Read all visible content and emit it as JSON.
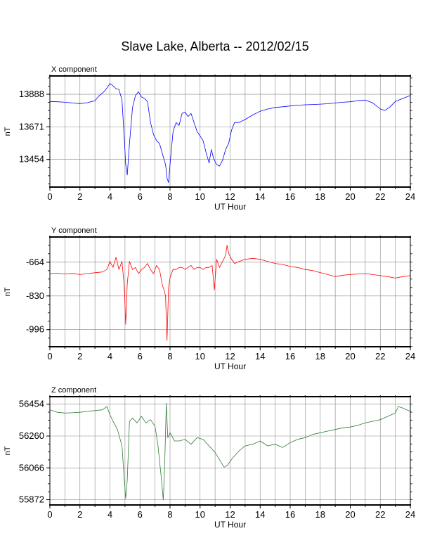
{
  "title": "Slave Lake, Alberta -- 2012/02/15",
  "chart_data": [
    {
      "type": "line",
      "panel_title": "X component",
      "xlabel": "UT Hour",
      "ylabel": "nT",
      "xlim": [
        0,
        24
      ],
      "ylim": [
        13270,
        14010
      ],
      "x_ticks": [
        0,
        2,
        4,
        6,
        8,
        10,
        12,
        14,
        16,
        18,
        20,
        22,
        24
      ],
      "y_ticks": [
        13454,
        13671,
        13888
      ],
      "grid": true,
      "series": [
        {
          "color": "#0000ff",
          "x": [
            0,
            0.5,
            1,
            1.5,
            2,
            2.5,
            3,
            3.3,
            3.6,
            3.8,
            4,
            4.2,
            4.4,
            4.6,
            4.8,
            4.95,
            5.05,
            5.15,
            5.3,
            5.5,
            5.7,
            5.9,
            6.1,
            6.3,
            6.5,
            6.7,
            6.9,
            7.1,
            7.3,
            7.5,
            7.7,
            7.8,
            7.9,
            8.0,
            8.2,
            8.4,
            8.6,
            8.8,
            9.0,
            9.2,
            9.4,
            9.6,
            9.8,
            10.0,
            10.2,
            10.4,
            10.6,
            10.75,
            10.9,
            11.1,
            11.3,
            11.5,
            11.7,
            11.9,
            12.1,
            12.3,
            12.6,
            13.0,
            13.5,
            14.0,
            14.5,
            15.0,
            15.5,
            16.0,
            16.5,
            17.0,
            17.5,
            18.0,
            18.5,
            19.0,
            19.5,
            20.0,
            20.5,
            21.0,
            21.5,
            22.0,
            22.3,
            22.6,
            23.0,
            23.5,
            24.0
          ],
          "values": [
            13840,
            13838,
            13835,
            13830,
            13826,
            13832,
            13845,
            13880,
            13905,
            13930,
            13960,
            13945,
            13925,
            13920,
            13850,
            13600,
            13420,
            13350,
            13560,
            13800,
            13880,
            13905,
            13870,
            13860,
            13840,
            13700,
            13620,
            13580,
            13560,
            13490,
            13420,
            13330,
            13300,
            13420,
            13640,
            13700,
            13680,
            13760,
            13770,
            13740,
            13760,
            13700,
            13640,
            13610,
            13580,
            13500,
            13430,
            13520,
            13460,
            13420,
            13410,
            13450,
            13520,
            13560,
            13650,
            13700,
            13700,
            13720,
            13750,
            13775,
            13790,
            13800,
            13805,
            13810,
            13815,
            13818,
            13820,
            13822,
            13825,
            13830,
            13835,
            13838,
            13845,
            13850,
            13830,
            13790,
            13780,
            13800,
            13840,
            13860,
            13880
          ]
        }
      ]
    },
    {
      "type": "line",
      "panel_title": "Y component",
      "xlabel": "UT Hour",
      "ylabel": "nT",
      "xlim": [
        0,
        24
      ],
      "ylim": [
        -1080,
        -540
      ],
      "x_ticks": [
        0,
        2,
        4,
        6,
        8,
        10,
        12,
        14,
        16,
        18,
        20,
        22,
        24
      ],
      "y_ticks": [
        -664,
        -830,
        -996
      ],
      "grid": true,
      "series": [
        {
          "color": "#ff0000",
          "x": [
            0,
            0.5,
            1,
            1.5,
            2,
            2.5,
            3,
            3.5,
            3.8,
            4.0,
            4.2,
            4.4,
            4.6,
            4.8,
            4.95,
            5.05,
            5.15,
            5.3,
            5.5,
            5.7,
            5.9,
            6.1,
            6.3,
            6.5,
            6.7,
            6.9,
            7.1,
            7.3,
            7.5,
            7.6,
            7.7,
            7.8,
            7.9,
            8.0,
            8.2,
            8.4,
            8.6,
            8.8,
            9.0,
            9.2,
            9.4,
            9.6,
            9.8,
            10.0,
            10.2,
            10.4,
            10.6,
            10.8,
            10.95,
            11.1,
            11.3,
            11.5,
            11.7,
            11.8,
            11.9,
            12.1,
            12.3,
            12.6,
            13.0,
            13.5,
            14.0,
            14.5,
            15.0,
            15.5,
            16.0,
            16.5,
            17.0,
            17.5,
            18.0,
            18.5,
            19.0,
            19.5,
            20.0,
            20.5,
            21.0,
            21.5,
            22.0,
            22.5,
            23.0,
            23.5,
            24.0
          ],
          "values": [
            -720,
            -718,
            -722,
            -719,
            -725,
            -720,
            -716,
            -712,
            -700,
            -660,
            -690,
            -640,
            -700,
            -660,
            -780,
            -970,
            -770,
            -660,
            -700,
            -690,
            -720,
            -700,
            -690,
            -670,
            -700,
            -720,
            -680,
            -700,
            -780,
            -800,
            -830,
            -1050,
            -790,
            -740,
            -700,
            -700,
            -690,
            -690,
            -700,
            -690,
            -680,
            -700,
            -690,
            -690,
            -700,
            -690,
            -690,
            -680,
            -800,
            -650,
            -690,
            -660,
            -630,
            -580,
            -620,
            -650,
            -670,
            -660,
            -650,
            -645,
            -650,
            -660,
            -670,
            -675,
            -685,
            -690,
            -700,
            -705,
            -715,
            -725,
            -735,
            -728,
            -725,
            -722,
            -720,
            -725,
            -730,
            -735,
            -742,
            -735,
            -730
          ]
        }
      ]
    },
    {
      "type": "line",
      "panel_title": "Z component",
      "xlabel": "UT Hour",
      "ylabel": "nT",
      "xlim": [
        0,
        24
      ],
      "ylim": [
        55840,
        56500
      ],
      "x_ticks": [
        0,
        2,
        4,
        6,
        8,
        10,
        12,
        14,
        16,
        18,
        20,
        22,
        24
      ],
      "y_ticks": [
        55872,
        56066,
        56260,
        56454
      ],
      "grid": true,
      "series": [
        {
          "color": "#2e7d32",
          "x": [
            0,
            0.5,
            1,
            1.5,
            2,
            2.5,
            3,
            3.5,
            3.8,
            4.0,
            4.2,
            4.5,
            4.8,
            4.95,
            5.05,
            5.15,
            5.3,
            5.5,
            5.8,
            6.1,
            6.4,
            6.7,
            7.0,
            7.2,
            7.4,
            7.55,
            7.65,
            7.75,
            7.85,
            8.0,
            8.3,
            8.6,
            9.0,
            9.4,
            9.8,
            10.2,
            10.6,
            11.0,
            11.4,
            11.6,
            11.8,
            12.2,
            12.6,
            13.0,
            13.5,
            14.0,
            14.5,
            15.0,
            15.5,
            16.0,
            16.5,
            17.0,
            17.5,
            18.0,
            18.5,
            19.0,
            19.5,
            20.0,
            20.5,
            21.0,
            21.5,
            22.0,
            22.5,
            23.0,
            23.2,
            23.5,
            24.0
          ],
          "values": [
            56420,
            56405,
            56400,
            56402,
            56405,
            56410,
            56415,
            56420,
            56440,
            56390,
            56350,
            56300,
            56200,
            56000,
            55880,
            55990,
            56350,
            56370,
            56340,
            56380,
            56340,
            56360,
            56320,
            56200,
            56020,
            55870,
            56100,
            56460,
            56250,
            56280,
            56230,
            56230,
            56240,
            56210,
            56250,
            56240,
            56200,
            56160,
            56100,
            56070,
            56080,
            56130,
            56170,
            56200,
            56210,
            56230,
            56200,
            56210,
            56190,
            56220,
            56240,
            56250,
            56270,
            56280,
            56290,
            56300,
            56310,
            56315,
            56325,
            56340,
            56350,
            56360,
            56380,
            56400,
            56440,
            56430,
            56410
          ]
        }
      ]
    }
  ]
}
